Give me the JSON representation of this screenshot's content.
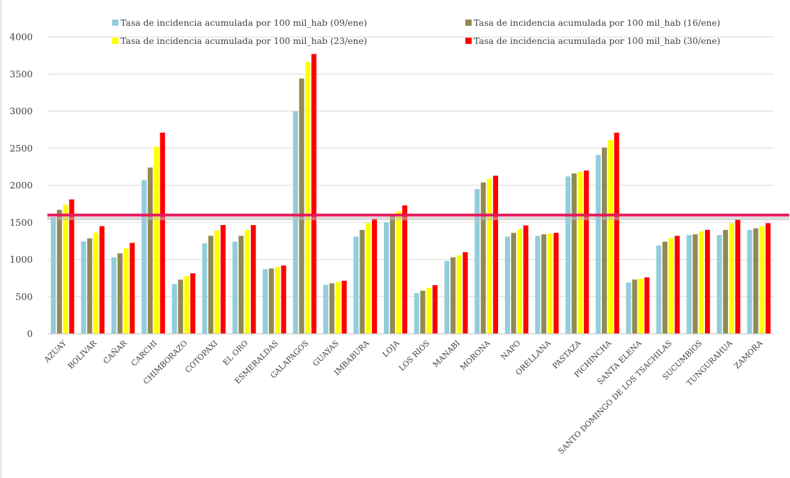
{
  "chart_data": {
    "type": "bar",
    "title": "",
    "xlabel": "",
    "ylabel": "",
    "ylim": [
      0,
      4000
    ],
    "yticks": [
      0,
      500,
      1000,
      1500,
      2000,
      2500,
      3000,
      3500,
      4000
    ],
    "grid": true,
    "legend_position": "top",
    "categories": [
      "AZUAY",
      "BOLIVAR",
      "CAÑAR",
      "CARCHI",
      "CHIMBORAZO",
      "COTOPAXI",
      "EL ORO",
      "ESMERALDAS",
      "GALAPAGOS",
      "GUAYAS",
      "IMBABURA",
      "LOJA",
      "LOS RIOS",
      "MANABI",
      "MORONA",
      "NAPO",
      "ORELLANA",
      "PASTAZA",
      "PICHINCHA",
      "SANTA ELENA",
      "SANTO DOMINGO DE LOS TSACHILAS",
      "SUCUMBIOS",
      "TUNGURAHUA",
      "ZAMORA"
    ],
    "series": [
      {
        "name": "Tasa de incidencia acumulada por 100 mil_hab (09/ene)",
        "color": "#92cddc",
        "values": [
          1570,
          1245,
          1030,
          2070,
          670,
          1220,
          1240,
          870,
          3000,
          660,
          1310,
          1500,
          550,
          980,
          1950,
          1310,
          1320,
          2120,
          2410,
          690,
          1190,
          1330,
          1330,
          1400
        ]
      },
      {
        "name": "Tasa de incidencia acumulada por 100 mil_hab (16/ene)",
        "color": "#938953",
        "values": [
          1670,
          1285,
          1085,
          2240,
          730,
          1320,
          1320,
          880,
          3440,
          680,
          1400,
          1600,
          580,
          1030,
          2040,
          1360,
          1340,
          2160,
          2510,
          730,
          1240,
          1340,
          1400,
          1420
        ]
      },
      {
        "name": "Tasa de incidencia acumulada por 100 mil_hab (23/ene)",
        "color": "#ffff00",
        "values": [
          1740,
          1360,
          1150,
          2520,
          775,
          1390,
          1400,
          900,
          3660,
          700,
          1490,
          1650,
          620,
          1060,
          2090,
          1410,
          1350,
          2180,
          2610,
          740,
          1290,
          1380,
          1490,
          1450
        ]
      },
      {
        "name": "Tasa de incidencia acumulada por 100 mil_hab (30/ene)",
        "color": "#ff0000",
        "values": [
          1810,
          1450,
          1225,
          2710,
          815,
          1465,
          1465,
          920,
          3770,
          715,
          1550,
          1730,
          655,
          1100,
          2130,
          1460,
          1360,
          2200,
          2710,
          760,
          1320,
          1400,
          1540,
          1490
        ]
      }
    ],
    "annotations": [
      {
        "type": "horizontal-line",
        "y": 1600,
        "color": "#e8175d"
      }
    ]
  }
}
